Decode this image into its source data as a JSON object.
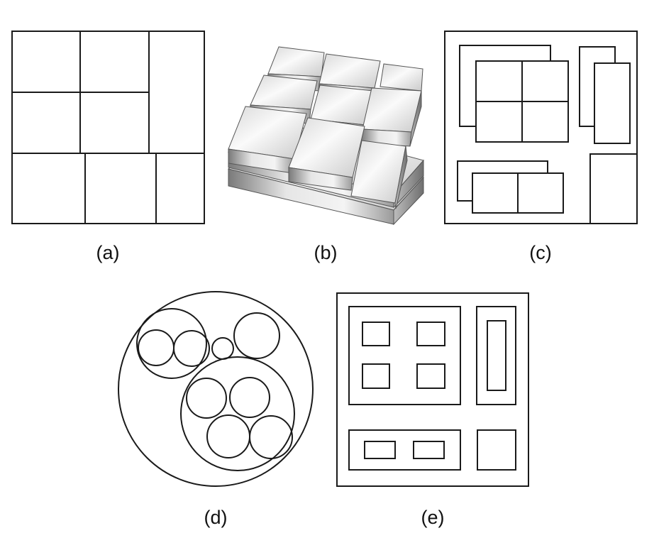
{
  "panels": [
    {
      "id": "a",
      "label": "(a)"
    },
    {
      "id": "b",
      "label": "(b)"
    },
    {
      "id": "c",
      "label": "(c)"
    },
    {
      "id": "d",
      "label": "(d)"
    },
    {
      "id": "e",
      "label": "(e)"
    }
  ],
  "colors": {
    "stroke": "#1a1a1a",
    "background": "#ffffff",
    "cube_light": "#f7f7f7",
    "cube_mid": "#d0d0d0",
    "cube_dark": "#8a8a8a"
  }
}
